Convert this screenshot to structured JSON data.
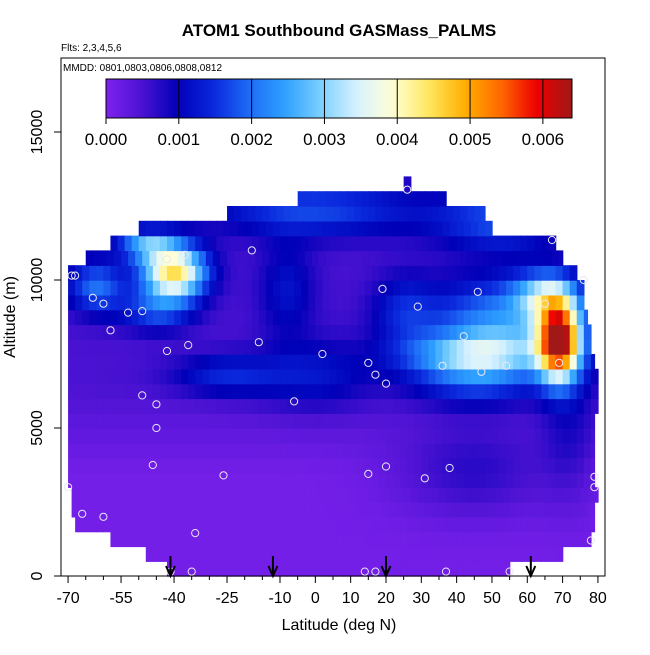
{
  "chart_data": {
    "type": "heatmap",
    "title": "ATOM1 Southbound GASMass_PALMS",
    "subtitle_lines": [
      "Flts: 2,3,4,5,6",
      "MMDD: 0801,0803,0806,0808,0812"
    ],
    "xlabel": "Latitude (deg N)",
    "ylabel": "Altitude (m)",
    "xlim": [
      -72,
      82
    ],
    "ylim": [
      0,
      17500
    ],
    "x_ticks": [
      -70,
      -55,
      -40,
      -25,
      -10,
      0,
      10,
      20,
      30,
      40,
      50,
      60,
      70,
      80
    ],
    "x_tick_labels": [
      "-70",
      "-55",
      "-40",
      "-25",
      "-10",
      "0",
      "10",
      "20",
      "30",
      "40",
      "50",
      "60",
      "70",
      "80"
    ],
    "x_minor_ticks": [
      -65,
      -60,
      -50,
      -45,
      -35,
      -30,
      -20,
      -15,
      -5,
      5,
      15,
      25,
      35,
      45,
      55,
      65,
      75
    ],
    "y_ticks": [
      0,
      5000,
      10000,
      15000
    ],
    "y_tick_labels": [
      "0",
      "5000",
      "10000",
      "15000"
    ],
    "colorbar": {
      "range": [
        0,
        0.0064
      ],
      "ticks": [
        0.0,
        0.001,
        0.002,
        0.003,
        0.004,
        0.005,
        0.006
      ],
      "tick_labels": [
        "0.000",
        "0.001",
        "0.002",
        "0.003",
        "0.004",
        "0.005",
        "0.006"
      ],
      "colors": [
        "#7e22ee",
        "#4b12d2",
        "#0000b8",
        "#0a28dc",
        "#1e6cf6",
        "#2ea0ff",
        "#7cd0ff",
        "#d8f2ff",
        "#ffffd6",
        "#ffe860",
        "#ffb000",
        "#ff6a00",
        "#ee0000",
        "#a01818"
      ]
    },
    "layer_boundaries_m": [
      0,
      500,
      1000,
      1500,
      2000,
      2500,
      3000,
      3500,
      4000,
      4500,
      5000,
      5500,
      6000,
      6500,
      7000,
      7500,
      8000,
      8500,
      9000,
      9500,
      10000,
      10500,
      11000,
      11500,
      12000,
      12500,
      13000,
      13500
    ],
    "layer_lat_extents": [
      [
        -42,
        55
      ],
      [
        -48,
        70
      ],
      [
        -58,
        78
      ],
      [
        -68,
        79
      ],
      [
        -69,
        79
      ],
      [
        -69,
        80
      ],
      [
        -70,
        79
      ],
      [
        -70,
        79
      ],
      [
        -70,
        79
      ],
      [
        -70,
        79
      ],
      [
        -70,
        79
      ],
      [
        -70,
        80
      ],
      [
        -70,
        80
      ],
      [
        -70,
        80
      ],
      [
        -70,
        79
      ],
      [
        -70,
        78
      ],
      [
        -70,
        78
      ],
      [
        -70,
        77
      ],
      [
        -70,
        76
      ],
      [
        -70,
        76
      ],
      [
        -70,
        74
      ],
      [
        -65,
        70
      ],
      [
        -58,
        68
      ],
      [
        -50,
        50
      ],
      [
        -25,
        48
      ],
      [
        -5,
        37
      ],
      [
        25,
        27
      ]
    ],
    "samples": [
      {
        "lat": -41,
        "alt": 150
      },
      {
        "lat": -35,
        "alt": 150
      },
      {
        "lat": 14,
        "alt": 150
      },
      {
        "lat": 17,
        "alt": 150
      },
      {
        "lat": 37,
        "alt": 150
      },
      {
        "lat": 55,
        "alt": 150
      },
      {
        "lat": -34,
        "alt": 1450
      },
      {
        "lat": 78,
        "alt": 1200
      },
      {
        "lat": -66,
        "alt": 2100
      },
      {
        "lat": -60,
        "alt": 2000
      },
      {
        "lat": -70,
        "alt": 3000
      },
      {
        "lat": -26,
        "alt": 3400
      },
      {
        "lat": 15,
        "alt": 3450
      },
      {
        "lat": 31,
        "alt": 3300
      },
      {
        "lat": 79,
        "alt": 3000
      },
      {
        "lat": 79,
        "alt": 3350
      },
      {
        "lat": -46,
        "alt": 3750
      },
      {
        "lat": 20,
        "alt": 3700
      },
      {
        "lat": 38,
        "alt": 3650
      },
      {
        "lat": -45,
        "alt": 5000
      },
      {
        "lat": -45,
        "alt": 5800
      },
      {
        "lat": -49,
        "alt": 6100
      },
      {
        "lat": -6,
        "alt": 5900
      },
      {
        "lat": 20,
        "alt": 6500
      },
      {
        "lat": 17,
        "alt": 6800
      },
      {
        "lat": 15,
        "alt": 7200
      },
      {
        "lat": 36,
        "alt": 7100
      },
      {
        "lat": 47,
        "alt": 6900
      },
      {
        "lat": 54,
        "alt": 7100
      },
      {
        "lat": 69,
        "alt": 7200
      },
      {
        "lat": -42,
        "alt": 7600
      },
      {
        "lat": -36,
        "alt": 7800
      },
      {
        "lat": 2,
        "alt": 7500
      },
      {
        "lat": -16,
        "alt": 7900
      },
      {
        "lat": 42,
        "alt": 8100
      },
      {
        "lat": -58,
        "alt": 8300
      },
      {
        "lat": -53,
        "alt": 8900
      },
      {
        "lat": -49,
        "alt": 8950
      },
      {
        "lat": 29,
        "alt": 9100
      },
      {
        "lat": -63,
        "alt": 9400
      },
      {
        "lat": -60,
        "alt": 9200
      },
      {
        "lat": 19,
        "alt": 9700
      },
      {
        "lat": 46,
        "alt": 9600
      },
      {
        "lat": 65,
        "alt": 9200
      },
      {
        "lat": -69,
        "alt": 10150
      },
      {
        "lat": -68,
        "alt": 10150
      },
      {
        "lat": -42,
        "alt": 10700
      },
      {
        "lat": -37,
        "alt": 10850
      },
      {
        "lat": -18,
        "alt": 11000
      },
      {
        "lat": 67,
        "alt": 11350
      },
      {
        "lat": 76,
        "alt": 10000
      },
      {
        "lat": 26,
        "alt": 13050
      }
    ],
    "arrows_lat": [
      -41,
      -12,
      20,
      61
    ]
  }
}
